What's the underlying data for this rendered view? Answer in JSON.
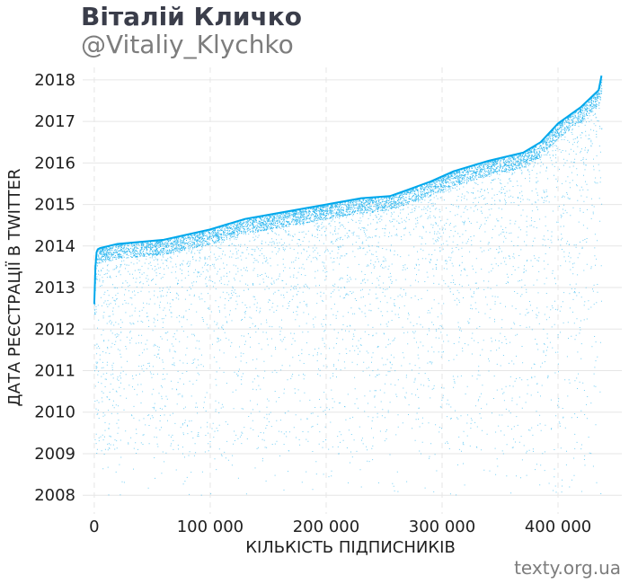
{
  "colors": {
    "title": "#3a3d4a",
    "subtitle": "#7d7d7d",
    "points": "#00a8ec",
    "grid": "#e6e6e6",
    "text": "#1f1f1f"
  },
  "source": "texty.org.ua",
  "chart_data": {
    "type": "scatter",
    "title": "Віталій Кличко",
    "subtitle": "@Vitaliy_Klychko",
    "xlabel": "КІЛЬКІСТЬ ПІДПИСНИКІВ",
    "ylabel": "ДАТА РЕЄСТРАЦІЇ В TWITTER",
    "xlim": [
      -10000,
      455000
    ],
    "ylim": [
      2007.55,
      2018.3
    ],
    "x_ticks": [
      0,
      100000,
      200000,
      300000,
      400000
    ],
    "x_tick_labels": [
      "0",
      "100 000",
      "200 000",
      "300 000",
      "400 000"
    ],
    "y_ticks": [
      2008,
      2009,
      2010,
      2011,
      2012,
      2013,
      2014,
      2015,
      2016,
      2017,
      2018
    ],
    "y_tick_labels": [
      "2018",
      "2017",
      "2016",
      "2015",
      "2014",
      "2013",
      "2012",
      "2011",
      "2010",
      "2009",
      "2008"
    ],
    "grid": true,
    "legend": "none",
    "series": [
      {
        "description": "upper envelope of follower registration dates (latest registration date observed at each follower index)",
        "x": [
          0,
          1000,
          2000,
          3000,
          5000,
          20000,
          60000,
          100000,
          130000,
          170000,
          200000,
          230000,
          255000,
          270000,
          290000,
          310000,
          340000,
          370000,
          385000,
          390000,
          400000,
          420000,
          435000,
          437500
        ],
        "y": [
          2012.6,
          2013.5,
          2013.85,
          2013.92,
          2013.95,
          2014.05,
          2014.15,
          2014.4,
          2014.65,
          2014.85,
          2015.0,
          2015.15,
          2015.2,
          2015.35,
          2015.55,
          2015.8,
          2016.05,
          2016.25,
          2016.5,
          2016.65,
          2016.95,
          2017.35,
          2017.75,
          2018.1
        ]
      }
    ]
  }
}
